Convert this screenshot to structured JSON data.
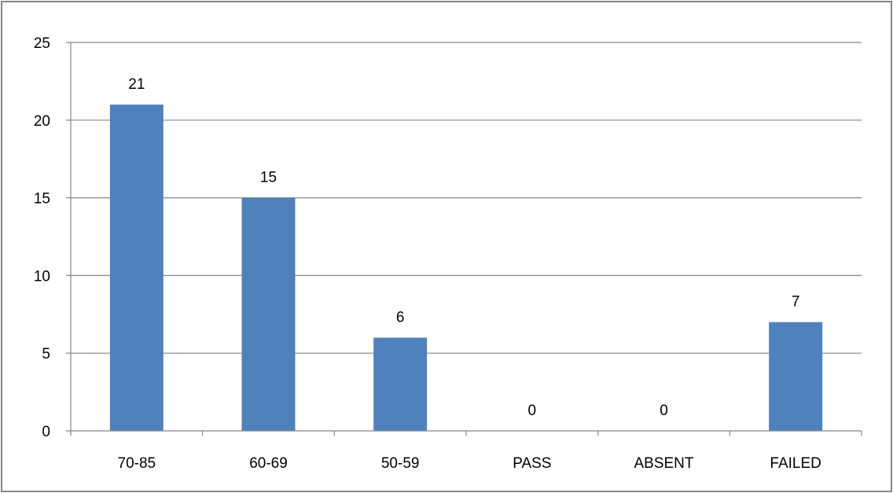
{
  "chart_data": {
    "type": "bar",
    "categories": [
      "70-85",
      "60-69",
      "50-59",
      "PASS",
      "ABSENT",
      "FAILED"
    ],
    "values": [
      21,
      15,
      6,
      0,
      0,
      7
    ],
    "title": "",
    "xlabel": "",
    "ylabel": "",
    "ylim": [
      0,
      25
    ],
    "yticks": [
      0,
      5,
      10,
      15,
      20,
      25
    ],
    "grid": true,
    "legend": "none",
    "data_labels": true,
    "bar_color": "#4f81bd",
    "gridline_color": "#868686",
    "border_color": "#868686"
  }
}
